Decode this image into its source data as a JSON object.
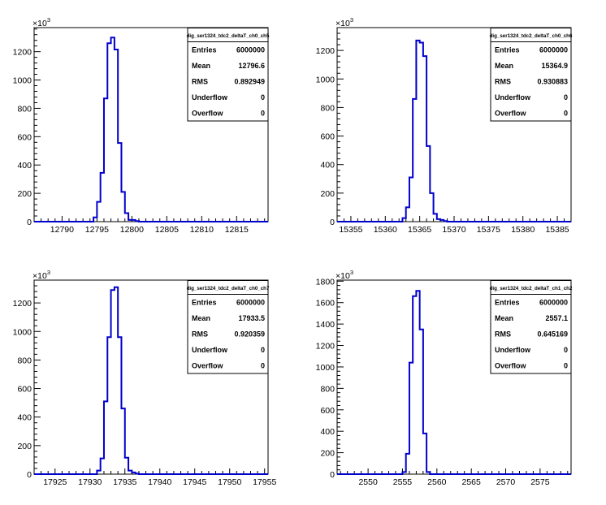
{
  "chart_data": [
    {
      "type": "histogram",
      "stats_title": "dig_ser1324_tdc2_deltaT_ch0_ch5",
      "stats": [
        {
          "label": "Entries",
          "value": "6000000"
        },
        {
          "label": "Mean",
          "value": "12796.6"
        },
        {
          "label": "RMS",
          "value": "0.892949"
        },
        {
          "label": "Underflow",
          "value": "0"
        },
        {
          "label": "Overflow",
          "value": "0"
        }
      ],
      "y_multiplier": "×10",
      "y_exponent": "3",
      "xlim": [
        12786,
        12819.5
      ],
      "ylim": [
        0,
        1370
      ],
      "xticks": [
        12790,
        12795,
        12800,
        12805,
        12810,
        12815
      ],
      "xtick_labels": [
        "12790",
        "12795",
        "12800",
        "12805",
        "12810",
        "12815"
      ],
      "yticks": [
        0,
        200,
        400,
        600,
        800,
        1000,
        1200
      ],
      "ytick_labels": [
        "0",
        "200",
        "400",
        "600",
        "800",
        "1000",
        "1200"
      ],
      "bin_width": 0.5,
      "bins": [
        [
          12794.5,
          30
        ],
        [
          12795.0,
          140
        ],
        [
          12795.5,
          345
        ],
        [
          12796.0,
          870
        ],
        [
          12796.5,
          1260
        ],
        [
          12797.0,
          1300
        ],
        [
          12797.5,
          1215
        ],
        [
          12798.0,
          555
        ],
        [
          12798.5,
          210
        ],
        [
          12799.0,
          60
        ],
        [
          12799.5,
          12
        ],
        [
          12800.0,
          12
        ],
        [
          12800.5,
          4
        ]
      ]
    },
    {
      "type": "histogram",
      "stats_title": "dig_ser1324_tdc2_deltaT_ch0_ch6",
      "stats": [
        {
          "label": "Entries",
          "value": "6000000"
        },
        {
          "label": "Mean",
          "value": "15364.9"
        },
        {
          "label": "RMS",
          "value": "0.930883"
        },
        {
          "label": "Underflow",
          "value": "0"
        },
        {
          "label": "Overflow",
          "value": "0"
        }
      ],
      "y_multiplier": "×10",
      "y_exponent": "3",
      "xlim": [
        15353,
        15387
      ],
      "ylim": [
        0,
        1360
      ],
      "xticks": [
        15355,
        15360,
        15365,
        15370,
        15375,
        15380,
        15385
      ],
      "xtick_labels": [
        "15355",
        "15360",
        "15365",
        "15370",
        "15375",
        "15380",
        "15385"
      ],
      "yticks": [
        0,
        200,
        400,
        600,
        800,
        1000,
        1200
      ],
      "ytick_labels": [
        "0",
        "200",
        "400",
        "600",
        "800",
        "1000",
        "1200"
      ],
      "bin_width": 0.5,
      "bins": [
        [
          15362.5,
          25
        ],
        [
          15363.0,
          100
        ],
        [
          15363.5,
          310
        ],
        [
          15364.0,
          860
        ],
        [
          15364.5,
          1270
        ],
        [
          15365.0,
          1255
        ],
        [
          15365.5,
          1160
        ],
        [
          15366.0,
          530
        ],
        [
          15366.5,
          200
        ],
        [
          15367.0,
          55
        ],
        [
          15367.5,
          18
        ],
        [
          15368.0,
          12
        ],
        [
          15368.5,
          4
        ]
      ]
    },
    {
      "type": "histogram",
      "stats_title": "dig_ser1324_tdc2_deltaT_ch0_ch7",
      "stats": [
        {
          "label": "Entries",
          "value": "6000000"
        },
        {
          "label": "Mean",
          "value": "17933.5"
        },
        {
          "label": "RMS",
          "value": "0.920359"
        },
        {
          "label": "Underflow",
          "value": "0"
        },
        {
          "label": "Overflow",
          "value": "0"
        }
      ],
      "y_multiplier": "×10",
      "y_exponent": "3",
      "xlim": [
        17922,
        17955.5
      ],
      "ylim": [
        0,
        1360
      ],
      "xticks": [
        17925,
        17930,
        17935,
        17940,
        17945,
        17950,
        17955
      ],
      "xtick_labels": [
        "17925",
        "17930",
        "17935",
        "17940",
        "17945",
        "17950",
        "17955"
      ],
      "yticks": [
        0,
        200,
        400,
        600,
        800,
        1000,
        1200
      ],
      "ytick_labels": [
        "0",
        "200",
        "400",
        "600",
        "800",
        "1000",
        "1200"
      ],
      "bin_width": 0.5,
      "bins": [
        [
          17931.0,
          25
        ],
        [
          17931.5,
          110
        ],
        [
          17932.0,
          510
        ],
        [
          17932.5,
          960
        ],
        [
          17933.0,
          1290
        ],
        [
          17933.5,
          1310
        ],
        [
          17934.0,
          960
        ],
        [
          17934.5,
          460
        ],
        [
          17935.0,
          115
        ],
        [
          17935.5,
          25
        ],
        [
          17936.0,
          12
        ],
        [
          17936.5,
          4
        ]
      ]
    },
    {
      "type": "histogram",
      "stats_title": "dig_ser1324_tdc2_deltaT_ch1_ch2",
      "stats": [
        {
          "label": "Entries",
          "value": "6000000"
        },
        {
          "label": "Mean",
          "value": "2557.1"
        },
        {
          "label": "RMS",
          "value": "0.645169"
        },
        {
          "label": "Underflow",
          "value": "0"
        },
        {
          "label": "Overflow",
          "value": "0"
        }
      ],
      "y_multiplier": "×10",
      "y_exponent": "3",
      "xlim": [
        2545.5,
        2579.5
      ],
      "ylim": [
        0,
        1810
      ],
      "xticks": [
        2550,
        2555,
        2560,
        2565,
        2570,
        2575
      ],
      "xtick_labels": [
        "2550",
        "2555",
        "2560",
        "2565",
        "2570",
        "2575"
      ],
      "yticks": [
        0,
        200,
        400,
        600,
        800,
        1000,
        1200,
        1400,
        1600,
        1800
      ],
      "ytick_labels": [
        "0",
        "200",
        "400",
        "600",
        "800",
        "1000",
        "1200",
        "1400",
        "1600",
        "1800"
      ],
      "bin_width": 0.5,
      "bins": [
        [
          2555.0,
          20
        ],
        [
          2555.5,
          190
        ],
        [
          2556.0,
          1040
        ],
        [
          2556.5,
          1660
        ],
        [
          2557.0,
          1710
        ],
        [
          2557.5,
          1350
        ],
        [
          2558.0,
          380
        ],
        [
          2558.5,
          20
        ]
      ]
    }
  ]
}
